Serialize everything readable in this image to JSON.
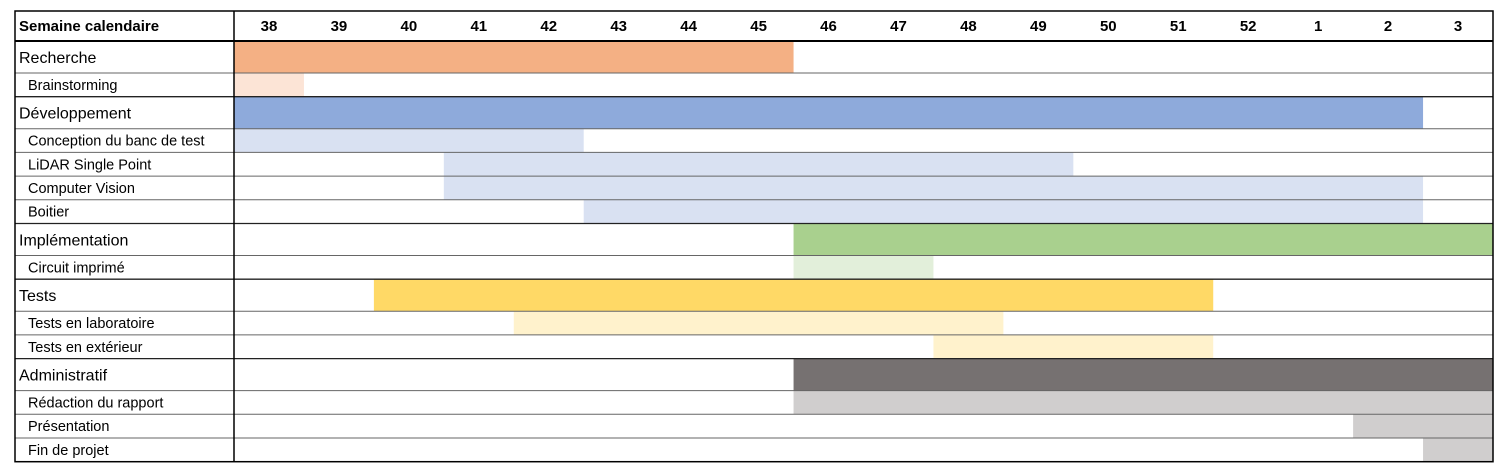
{
  "chart_data": {
    "type": "gantt",
    "header_label": "Semaine calendaire",
    "weeks": [
      "38",
      "39",
      "40",
      "41",
      "42",
      "43",
      "44",
      "45",
      "46",
      "47",
      "48",
      "49",
      "50",
      "51",
      "52",
      "1",
      "2",
      "3"
    ],
    "tasks": [
      {
        "name": "Recherche",
        "level": 0,
        "start_week": "38",
        "end_week": "45",
        "color": "#f4b084"
      },
      {
        "name": "Brainstorming",
        "level": 1,
        "start_week": "38",
        "end_week": "38",
        "color": "#fce4d6"
      },
      {
        "name": "Développement",
        "level": 0,
        "start_week": "38",
        "end_week": "2",
        "color": "#8eaadb"
      },
      {
        "name": "Conception du banc de test",
        "level": 1,
        "start_week": "38",
        "end_week": "42",
        "color": "#d9e1f2"
      },
      {
        "name": "LiDAR Single Point",
        "level": 1,
        "start_week": "41",
        "end_week": "49",
        "color": "#d9e1f2"
      },
      {
        "name": "Computer Vision",
        "level": 1,
        "start_week": "41",
        "end_week": "2",
        "color": "#d9e1f2"
      },
      {
        "name": "Boitier",
        "level": 1,
        "start_week": "43",
        "end_week": "2",
        "color": "#d9e1f2"
      },
      {
        "name": "Implémentation",
        "level": 0,
        "start_week": "46",
        "end_week": "3",
        "color": "#a9d08e"
      },
      {
        "name": "Circuit imprimé",
        "level": 1,
        "start_week": "46",
        "end_week": "47",
        "color": "#e2efda"
      },
      {
        "name": "Tests",
        "level": 0,
        "start_week": "40",
        "end_week": "51",
        "color": "#ffd966"
      },
      {
        "name": "Tests en laboratoire",
        "level": 1,
        "start_week": "42",
        "end_week": "48",
        "color": "#fff2cc"
      },
      {
        "name": "Tests en extérieur",
        "level": 1,
        "start_week": "48",
        "end_week": "51",
        "color": "#fff2cc"
      },
      {
        "name": "Administratif",
        "level": 0,
        "start_week": "46",
        "end_week": "3",
        "color": "#767171"
      },
      {
        "name": "Rédaction du rapport",
        "level": 1,
        "start_week": "46",
        "end_week": "3",
        "color": "#d0cece"
      },
      {
        "name": "Présentation",
        "level": 1,
        "start_week": "2",
        "end_week": "3",
        "color": "#d0cece"
      },
      {
        "name": "Fin de projet",
        "level": 1,
        "start_week": "3",
        "end_week": "3",
        "color": "#d0cece"
      }
    ]
  }
}
